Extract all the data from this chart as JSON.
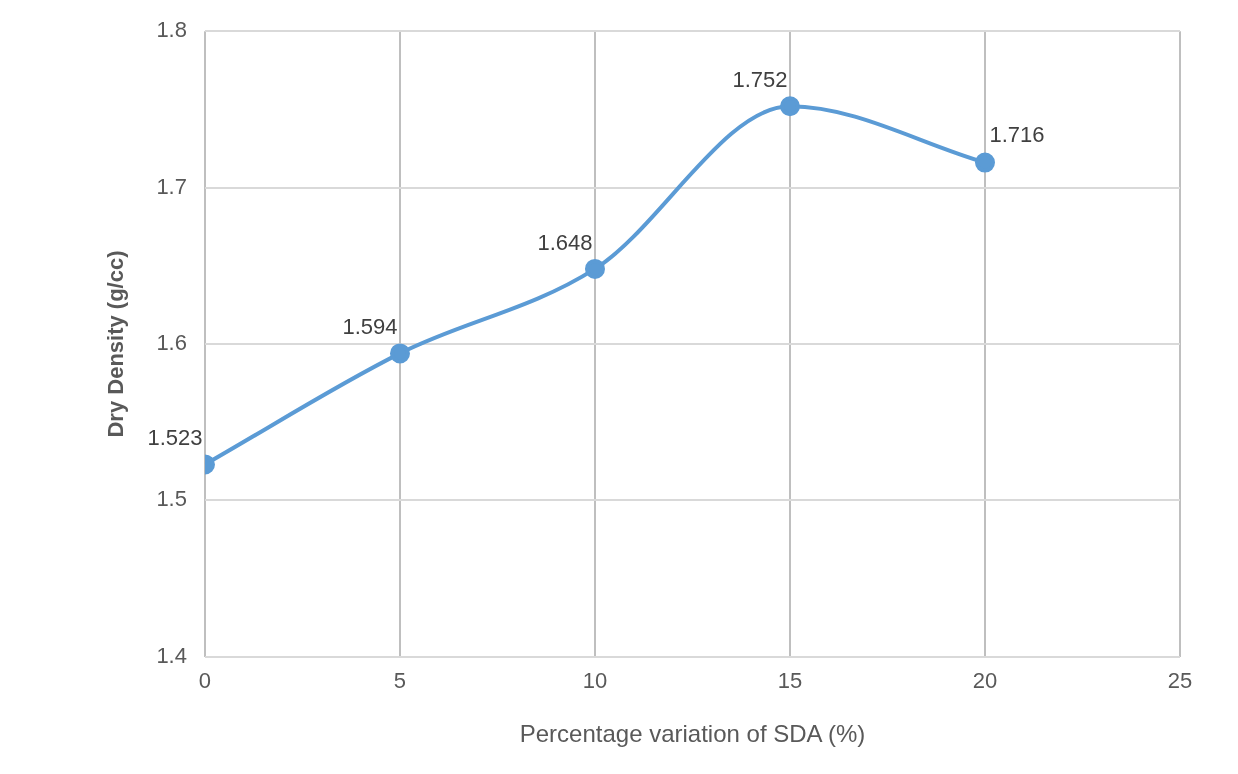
{
  "chart_data": {
    "type": "line",
    "xlabel": "Percentage variation of SDA (%)",
    "ylabel": "Dry Density (g/cc)",
    "x": [
      0,
      5,
      10,
      15,
      20
    ],
    "series": [
      {
        "color": "#5b9bd5",
        "values": [
          1.523,
          1.594,
          1.648,
          1.752,
          1.716
        ]
      }
    ],
    "xlim": [
      0,
      25
    ],
    "xticks": [
      0,
      5,
      10,
      15,
      20,
      25
    ],
    "ylim": [
      1.4,
      1.8
    ],
    "yticks": [
      1.4,
      1.5,
      1.6,
      1.7,
      1.8
    ],
    "grid": true,
    "marker": "circle",
    "data_labels": true,
    "legend": false
  }
}
